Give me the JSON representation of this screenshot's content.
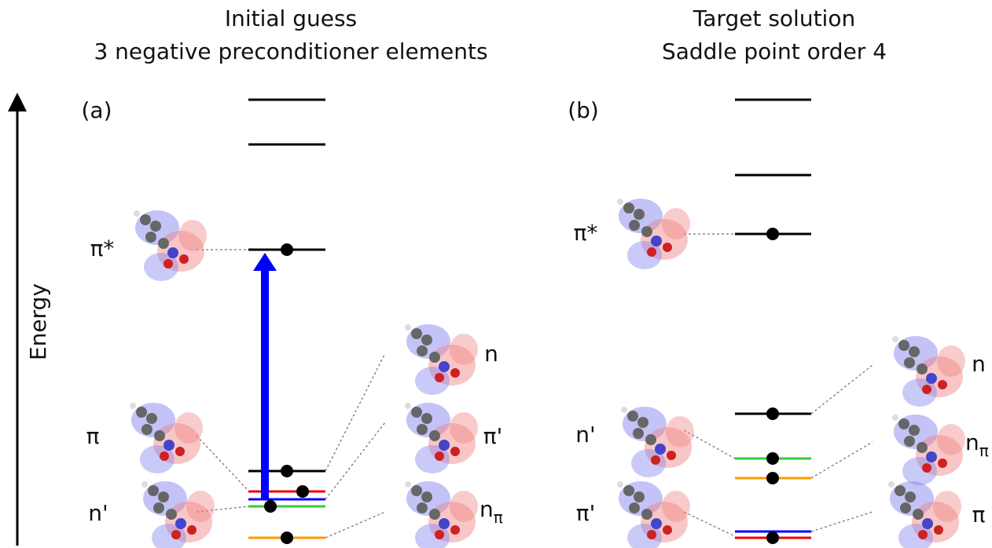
{
  "axis_label": "Energy",
  "panels": [
    {
      "label": "(a)",
      "title": [
        "Initial guess",
        "3 negative preconditioner elements"
      ],
      "orbitals": [
        {
          "label": "π*"
        },
        {
          "label": "π"
        },
        {
          "label": "n'"
        },
        {
          "label": "n"
        },
        {
          "label": "π'"
        },
        {
          "label": "n",
          "subscript": "π"
        }
      ]
    },
    {
      "label": "(b)",
      "title": [
        "Target solution",
        "Saddle point order 4"
      ],
      "orbitals": [
        {
          "label": "π*"
        },
        {
          "label": "n'"
        },
        {
          "label": "π'"
        },
        {
          "label": "n"
        },
        {
          "label": "n",
          "subscript": "π"
        },
        {
          "label": "π"
        }
      ]
    }
  ]
}
